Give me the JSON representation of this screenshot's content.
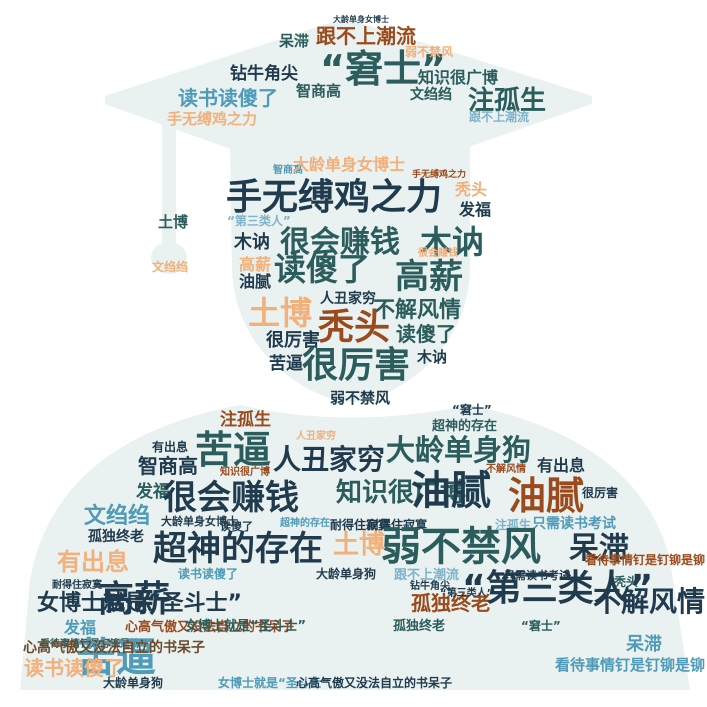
{
  "title": "",
  "colors": {
    "background": "#ffffff",
    "silhouette": "#eaf1f1",
    "palette": [
      "#1f3b4d",
      "#2b5d5d",
      "#9a4a1c",
      "#f2b07a",
      "#4f9bb8",
      "#6b4a2b",
      "#7fb3c9"
    ]
  },
  "words": [
    {
      "text": "大龄单身女博士",
      "color": "#1f3b4d"
    },
    {
      "text": "呆滞",
      "color": "#2b5d5d"
    },
    {
      "text": "跟不上潮流",
      "color": "#9a4a1c"
    },
    {
      "text": "“窘士”",
      "color": "#2b5d5d"
    },
    {
      "text": "弱不禁风",
      "color": "#f2b07a"
    },
    {
      "text": "钻牛角尖",
      "color": "#1f3b4d"
    },
    {
      "text": "知识很广博",
      "color": "#2b5d5d"
    },
    {
      "text": "读书读傻了",
      "color": "#4f9bb8"
    },
    {
      "text": "智商高",
      "color": "#2b5d5d"
    },
    {
      "text": "文绉绉",
      "color": "#2b5d5d"
    },
    {
      "text": "注孤生",
      "color": "#2b5d5d"
    },
    {
      "text": "手无缚鸡之力",
      "color": "#f2b07a"
    },
    {
      "text": "跟不上潮流",
      "color": "#7fb3c9"
    },
    {
      "text": "智商高",
      "color": "#4f9bb8"
    },
    {
      "text": "大龄单身女博士",
      "color": "#f2b07a"
    },
    {
      "text": "手无缚鸡之力",
      "color": "#9a4a1c"
    },
    {
      "text": "手无缚鸡之力",
      "color": "#1f3b4d"
    },
    {
      "text": "秃头",
      "color": "#f2b07a"
    },
    {
      "text": "发福",
      "color": "#1f3b4d"
    },
    {
      "text": "土博",
      "color": "#2b5d5d"
    },
    {
      "text": "“第三类人”",
      "color": "#7fb3c9"
    },
    {
      "text": "木讷",
      "color": "#1f3b4d"
    },
    {
      "text": "很会赚钱",
      "color": "#2b5d5d"
    },
    {
      "text": "木讷",
      "color": "#2b5d5d"
    },
    {
      "text": "很会赚钱",
      "color": "#f2b07a"
    },
    {
      "text": "文绉绉",
      "color": "#f2b07a"
    },
    {
      "text": "高薪",
      "color": "#f2b07a"
    },
    {
      "text": "读傻了",
      "color": "#2b5d5d"
    },
    {
      "text": "高薪",
      "color": "#2b5d5d"
    },
    {
      "text": "油腻",
      "color": "#1f3b4d"
    },
    {
      "text": "人丑家穷",
      "color": "#1f3b4d"
    },
    {
      "text": "土博",
      "color": "#f2b07a"
    },
    {
      "text": "不解风情",
      "color": "#2b5d5d"
    },
    {
      "text": "秃头",
      "color": "#9a4a1c"
    },
    {
      "text": "读傻了",
      "color": "#2b5d5d"
    },
    {
      "text": "很厉害",
      "color": "#1f3b4d"
    },
    {
      "text": "木讷",
      "color": "#1f3b4d"
    },
    {
      "text": "苦逼",
      "color": "#1f3b4d"
    },
    {
      "text": "很厉害",
      "color": "#2b5d5d"
    },
    {
      "text": "弱不禁风",
      "color": "#1f3b4d"
    },
    {
      "text": "“窘士”",
      "color": "#1f3b4d"
    },
    {
      "text": "注孤生",
      "color": "#9a4a1c"
    },
    {
      "text": "人丑家穷",
      "color": "#f2b07a"
    },
    {
      "text": "超神的存在",
      "color": "#2b5d5d"
    },
    {
      "text": "有出息",
      "color": "#1f3b4d"
    },
    {
      "text": "苦逼",
      "color": "#2b5d5d"
    },
    {
      "text": "人丑家穷",
      "color": "#1f3b4d"
    },
    {
      "text": "大龄单身狗",
      "color": "#2b5d5d"
    },
    {
      "text": "智商高",
      "color": "#1f3b4d"
    },
    {
      "text": "知识很广博",
      "color": "#9a4a1c"
    },
    {
      "text": "不解风情",
      "color": "#9a4a1c"
    },
    {
      "text": "有出息",
      "color": "#1f3b4d"
    },
    {
      "text": "发福",
      "color": "#2b5d5d"
    },
    {
      "text": "很会赚钱",
      "color": "#1f3b4d"
    },
    {
      "text": "知识很广博",
      "color": "#2b5d5d"
    },
    {
      "text": "油腻",
      "color": "#1f3b4d"
    },
    {
      "text": "油腻",
      "color": "#9a4a1c"
    },
    {
      "text": "很厉害",
      "color": "#1f3b4d"
    },
    {
      "text": "读傻了",
      "color": "#1f3b4d"
    },
    {
      "text": "文绉绉",
      "color": "#4f9bb8"
    },
    {
      "text": "大龄单身女博士",
      "color": "#1f3b4d"
    },
    {
      "text": "超神的存在",
      "color": "#4f9bb8"
    },
    {
      "text": "耐得住寂寞",
      "color": "#1f3b4d"
    },
    {
      "text": "耐得住寂寞",
      "color": "#1f3b4d"
    },
    {
      "text": "注孤生",
      "color": "#7fb3c9"
    },
    {
      "text": "只需读书考试",
      "color": "#4f9bb8"
    },
    {
      "text": "孤独终老",
      "color": "#1f3b4d"
    },
    {
      "text": "有出息",
      "color": "#f2b07a"
    },
    {
      "text": "超神的存在",
      "color": "#1f3b4d"
    },
    {
      "text": "土博",
      "color": "#f2b07a"
    },
    {
      "text": "弱不禁风",
      "color": "#2b5d5d"
    },
    {
      "text": "呆滞",
      "color": "#1f3b4d"
    },
    {
      "text": "看待事情钉是钉铆是铆",
      "color": "#9a4a1c"
    },
    {
      "text": "读书读傻了",
      "color": "#4f9bb8"
    },
    {
      "text": "大龄单身狗",
      "color": "#1f3b4d"
    },
    {
      "text": "跟不上潮流",
      "color": "#7fb3c9"
    },
    {
      "text": "只需读书考试",
      "color": "#1f3b4d"
    },
    {
      "text": "耐得住寂寞",
      "color": "#1f3b4d"
    },
    {
      "text": "钻牛角尖",
      "color": "#1f3b4d"
    },
    {
      "text": "秃头",
      "color": "#2b5d5d"
    },
    {
      "text": "女博士就是“圣斗士”",
      "color": "#1f3b4d"
    },
    {
      "text": "高薪",
      "color": "#1f3b4d"
    },
    {
      "text": "孤独终老",
      "color": "#9a4a1c"
    },
    {
      "text": "“第三类人”",
      "color": "#1f3b4d"
    },
    {
      "text": "发福",
      "color": "#4f9bb8"
    },
    {
      "text": "“第三类人”",
      "color": "#1f3b4d"
    },
    {
      "text": "不解风情",
      "color": "#1f3b4d"
    },
    {
      "text": "心高气傲又没法自立的书呆子",
      "color": "#9a4a1c"
    },
    {
      "text": "女博士就是“圣斗士”",
      "color": "#2b5d5d"
    },
    {
      "text": "看待事情钉是钉铆是铆",
      "color": "#2b5d5d"
    },
    {
      "text": "苦逼",
      "color": "#4f9bb8"
    },
    {
      "text": "孤独终老",
      "color": "#2b5d5d"
    },
    {
      "text": "“窘士”",
      "color": "#2b5d5d"
    },
    {
      "text": "呆滞",
      "color": "#4f9bb8"
    },
    {
      "text": "心高气傲又没法自立的书呆子",
      "color": "#6b4a2b"
    },
    {
      "text": "看待事情钉是钉铆是铆",
      "color": "#4f9bb8"
    },
    {
      "text": "读书读傻了",
      "color": "#f2b07a"
    },
    {
      "text": "大龄单身狗",
      "color": "#1f3b4d"
    },
    {
      "text": "女博士就是“圣斗士”",
      "color": "#4f9bb8"
    },
    {
      "text": "心高气傲又没法自立的书呆子",
      "color": "#1f3b4d"
    }
  ]
}
